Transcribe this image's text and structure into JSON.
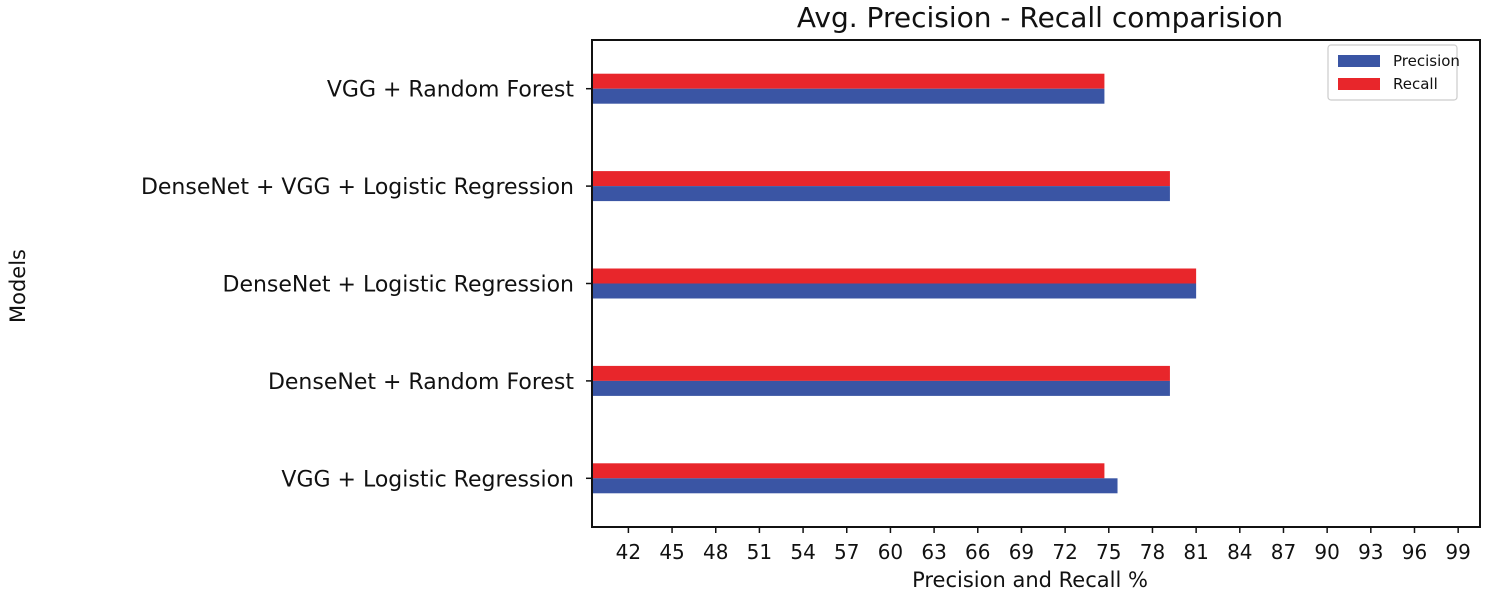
{
  "chart_data": {
    "type": "bar",
    "orientation": "horizontal",
    "title": "Avg. Precision - Recall comparision",
    "xlabel": "Precision and Recall %",
    "ylabel": "Models",
    "categories": [
      "VGG + Random Forest",
      "DenseNet + VGG + Logistic Regression",
      "DenseNet + Logistic Regression",
      "DenseNet + Random Forest",
      "VGG + Logistic Regression"
    ],
    "series": [
      {
        "name": "Precision",
        "color": "#3a55a4",
        "values": [
          74.7,
          79.2,
          81.0,
          79.2,
          75.6
        ]
      },
      {
        "name": "Recall",
        "color": "#e8262b",
        "values": [
          74.7,
          79.2,
          81.0,
          79.2,
          74.7
        ]
      }
    ],
    "xlim": [
      39.5,
      100.5
    ],
    "xticks": [
      "42",
      "45",
      "48",
      "51",
      "54",
      "57",
      "60",
      "63",
      "66",
      "69",
      "72",
      "75",
      "78",
      "81",
      "84",
      "87",
      "90",
      "93",
      "96",
      "99"
    ],
    "grid": false,
    "legend_position": "top-right"
  }
}
